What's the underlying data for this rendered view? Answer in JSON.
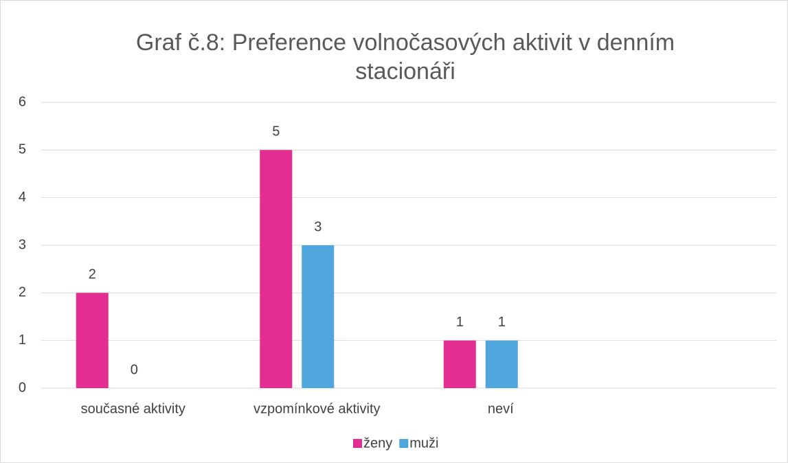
{
  "chart_data": {
    "type": "bar",
    "title": "Graf č.8: Preference volnočasových aktivit v denním stacionáři",
    "categories": [
      "současné aktivity",
      "vzpomínkové aktivity",
      "neví",
      null
    ],
    "series": [
      {
        "name": "ženy",
        "color": "#e32d91",
        "values": [
          2,
          5,
          1,
          null
        ]
      },
      {
        "name": "muži",
        "color": "#4ea6dc",
        "values": [
          0,
          3,
          1,
          null
        ]
      }
    ],
    "ylim": [
      0,
      6
    ],
    "yticks": [
      0,
      1,
      2,
      3,
      4,
      5,
      6
    ],
    "grid": true,
    "legend": "bottom"
  }
}
